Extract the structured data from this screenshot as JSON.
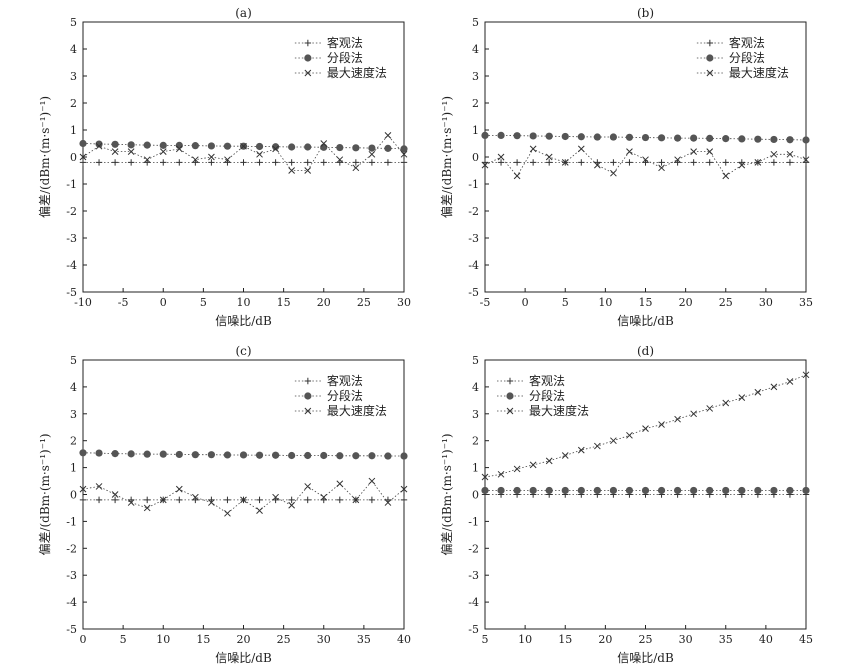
{
  "chart_data": [
    {
      "type": "line",
      "title": "(a)",
      "xlabel": "信噪比/dB",
      "ylabel": "偏差/(dBm·(m·s⁻¹)⁻¹)",
      "xlim": [
        -10,
        30
      ],
      "ylim": [
        -5,
        5
      ],
      "xticks": [
        -10,
        -5,
        0,
        5,
        10,
        15,
        20,
        25,
        30
      ],
      "yticks": [
        -5,
        -4,
        -3,
        -2,
        -1,
        0,
        1,
        2,
        3,
        4,
        5
      ],
      "legend_position": "top-right",
      "x": [
        -10,
        -8,
        -6,
        -4,
        -2,
        0,
        2,
        4,
        6,
        8,
        10,
        12,
        14,
        16,
        18,
        20,
        22,
        24,
        26,
        28,
        30
      ],
      "series": [
        {
          "name": "客观法",
          "marker": "plus",
          "values": [
            -0.2,
            -0.2,
            -0.2,
            -0.2,
            -0.2,
            -0.2,
            -0.2,
            -0.2,
            -0.2,
            -0.2,
            -0.2,
            -0.2,
            -0.2,
            -0.2,
            -0.2,
            -0.2,
            -0.2,
            -0.2,
            -0.2,
            -0.2,
            -0.2
          ]
        },
        {
          "name": "分段法",
          "marker": "dot",
          "values": [
            0.5,
            0.48,
            0.47,
            0.45,
            0.44,
            0.43,
            0.43,
            0.42,
            0.41,
            0.4,
            0.4,
            0.39,
            0.38,
            0.37,
            0.37,
            0.36,
            0.35,
            0.34,
            0.33,
            0.32,
            0.3
          ]
        },
        {
          "name": "最大速度法",
          "marker": "x",
          "values": [
            0.0,
            0.4,
            0.2,
            0.2,
            -0.1,
            0.2,
            0.3,
            -0.1,
            0.0,
            -0.1,
            0.4,
            0.1,
            0.3,
            -0.5,
            -0.5,
            0.5,
            -0.1,
            -0.4,
            0.1,
            0.8,
            0.1
          ]
        }
      ]
    },
    {
      "type": "line",
      "title": "(b)",
      "xlabel": "信噪比/dB",
      "ylabel": "偏差/(dBm·(m·s⁻¹)⁻¹)",
      "xlim": [
        -5,
        35
      ],
      "ylim": [
        -5,
        5
      ],
      "xticks": [
        -5,
        0,
        5,
        10,
        15,
        20,
        25,
        30,
        35
      ],
      "yticks": [
        -5,
        -4,
        -3,
        -2,
        -1,
        0,
        1,
        2,
        3,
        4,
        5
      ],
      "legend_position": "top-right",
      "x": [
        -5,
        -3,
        -1,
        1,
        3,
        5,
        7,
        9,
        11,
        13,
        15,
        17,
        19,
        21,
        23,
        25,
        27,
        29,
        31,
        33,
        35
      ],
      "series": [
        {
          "name": "客观法",
          "marker": "plus",
          "values": [
            -0.2,
            -0.2,
            -0.2,
            -0.2,
            -0.2,
            -0.2,
            -0.2,
            -0.2,
            -0.2,
            -0.2,
            -0.2,
            -0.2,
            -0.2,
            -0.2,
            -0.2,
            -0.2,
            -0.2,
            -0.2,
            -0.2,
            -0.2,
            -0.2
          ]
        },
        {
          "name": "分段法",
          "marker": "dot",
          "values": [
            0.8,
            0.8,
            0.79,
            0.78,
            0.77,
            0.76,
            0.75,
            0.74,
            0.74,
            0.73,
            0.72,
            0.71,
            0.7,
            0.7,
            0.69,
            0.68,
            0.67,
            0.66,
            0.65,
            0.64,
            0.63
          ]
        },
        {
          "name": "最大速度法",
          "marker": "x",
          "values": [
            -0.3,
            0.0,
            -0.7,
            0.3,
            0.0,
            -0.2,
            0.3,
            -0.3,
            -0.6,
            0.2,
            -0.1,
            -0.4,
            -0.1,
            0.2,
            0.2,
            -0.7,
            -0.3,
            -0.2,
            0.1,
            0.1,
            -0.1
          ]
        }
      ]
    },
    {
      "type": "line",
      "title": "(c)",
      "xlabel": "信噪比/dB",
      "ylabel": "偏差/(dBm·(m·s⁻¹)⁻¹)",
      "xlim": [
        0,
        40
      ],
      "ylim": [
        -5,
        5
      ],
      "xticks": [
        0,
        5,
        10,
        15,
        20,
        25,
        30,
        35,
        40
      ],
      "yticks": [
        -5,
        -4,
        -3,
        -2,
        -1,
        0,
        1,
        2,
        3,
        4,
        5
      ],
      "legend_position": "top-right",
      "x": [
        0,
        2,
        4,
        6,
        8,
        10,
        12,
        14,
        16,
        18,
        20,
        22,
        24,
        26,
        28,
        30,
        32,
        34,
        36,
        38,
        40
      ],
      "series": [
        {
          "name": "客观法",
          "marker": "plus",
          "values": [
            -0.2,
            -0.2,
            -0.2,
            -0.2,
            -0.2,
            -0.2,
            -0.2,
            -0.2,
            -0.2,
            -0.2,
            -0.2,
            -0.2,
            -0.2,
            -0.2,
            -0.2,
            -0.2,
            -0.2,
            -0.2,
            -0.2,
            -0.2,
            -0.2
          ]
        },
        {
          "name": "分段法",
          "marker": "dot",
          "values": [
            1.55,
            1.54,
            1.52,
            1.51,
            1.5,
            1.5,
            1.49,
            1.48,
            1.48,
            1.47,
            1.47,
            1.46,
            1.46,
            1.45,
            1.45,
            1.45,
            1.44,
            1.44,
            1.44,
            1.43,
            1.43
          ]
        },
        {
          "name": "最大速度法",
          "marker": "x",
          "values": [
            0.2,
            0.3,
            0.0,
            -0.3,
            -0.5,
            -0.2,
            0.2,
            -0.1,
            -0.3,
            -0.7,
            -0.2,
            -0.6,
            -0.1,
            -0.4,
            0.3,
            -0.1,
            0.4,
            -0.2,
            0.5,
            -0.3,
            0.2
          ]
        }
      ]
    },
    {
      "type": "line",
      "title": "(d)",
      "xlabel": "信噪比/dB",
      "ylabel": "偏差/(dBm·(m·s⁻¹)⁻¹)",
      "xlim": [
        5,
        45
      ],
      "ylim": [
        -5,
        5
      ],
      "xticks": [
        5,
        10,
        15,
        20,
        25,
        30,
        35,
        40,
        45
      ],
      "yticks": [
        -5,
        -4,
        -3,
        -2,
        -1,
        0,
        1,
        2,
        3,
        4,
        5
      ],
      "legend_position": "top-left",
      "x": [
        5,
        7,
        9,
        11,
        13,
        15,
        17,
        19,
        21,
        23,
        25,
        27,
        29,
        31,
        33,
        35,
        37,
        39,
        41,
        43,
        45
      ],
      "series": [
        {
          "name": "客观法",
          "marker": "plus",
          "values": [
            0.0,
            0.0,
            0.0,
            0.0,
            0.0,
            0.0,
            0.0,
            0.0,
            0.0,
            0.0,
            0.0,
            0.0,
            0.0,
            0.0,
            0.0,
            0.0,
            0.0,
            0.0,
            0.0,
            0.0,
            0.0
          ]
        },
        {
          "name": "分段法",
          "marker": "dot",
          "values": [
            0.15,
            0.15,
            0.15,
            0.15,
            0.15,
            0.15,
            0.15,
            0.15,
            0.15,
            0.15,
            0.15,
            0.15,
            0.15,
            0.15,
            0.15,
            0.15,
            0.15,
            0.15,
            0.15,
            0.15,
            0.15
          ]
        },
        {
          "name": "最大速度法",
          "marker": "x",
          "values": [
            0.65,
            0.75,
            0.95,
            1.1,
            1.25,
            1.45,
            1.65,
            1.8,
            2.0,
            2.2,
            2.45,
            2.6,
            2.8,
            3.0,
            3.2,
            3.4,
            3.6,
            3.8,
            4.0,
            4.2,
            4.45
          ]
        }
      ]
    }
  ]
}
